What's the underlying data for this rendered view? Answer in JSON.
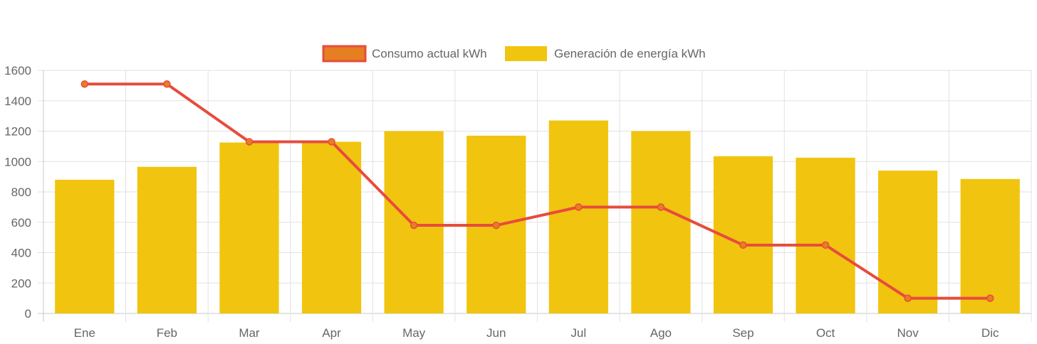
{
  "chart_data": {
    "type": "bar",
    "categories": [
      "Ene",
      "Feb",
      "Mar",
      "Apr",
      "May",
      "Jun",
      "Jul",
      "Ago",
      "Sep",
      "Oct",
      "Nov",
      "Dic"
    ],
    "series": [
      {
        "name": "Consumo actual kWh",
        "type": "line",
        "values": [
          1510,
          1510,
          1130,
          1130,
          580,
          580,
          700,
          700,
          450,
          450,
          100,
          100
        ],
        "color": "#e74c3c",
        "fill_color": "#e67e22"
      },
      {
        "name": "Generación de energía kWh",
        "type": "bar",
        "values": [
          880,
          965,
          1125,
          1130,
          1200,
          1170,
          1270,
          1200,
          1035,
          1025,
          940,
          885
        ],
        "color": "#f1c40f"
      }
    ],
    "y_ticks": [
      0,
      200,
      400,
      600,
      800,
      1000,
      1200,
      1400,
      1600
    ],
    "ylim": [
      0,
      1600
    ],
    "grid": true,
    "legend_position": "top-center"
  }
}
